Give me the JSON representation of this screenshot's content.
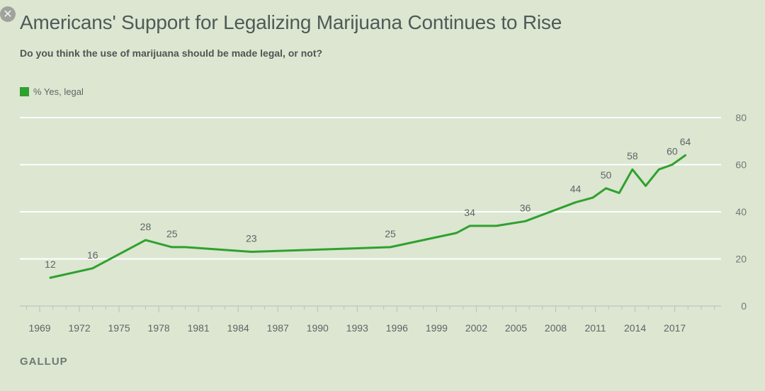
{
  "ui": {
    "close_icon": "close-icon"
  },
  "header": {
    "title": "Americans' Support for Legalizing Marijuana Continues to Rise",
    "subtitle": "Do you think the use of marijuana should be made legal, or not?"
  },
  "footer": {
    "source": "GALLUP"
  },
  "colors": {
    "line": "#2ea12e",
    "grid": "#ffffff",
    "background": "#dce6d1"
  },
  "chart_data": {
    "type": "line",
    "title": "Americans' Support for Legalizing Marijuana Continues to Rise",
    "subtitle": "Do you think the use of marijuana should be made legal, or not?",
    "xlabel": "",
    "ylabel": "",
    "xlim": [
      1967.5,
      2020.5
    ],
    "ylim": [
      0,
      80
    ],
    "y_axis_side": "right",
    "yticks": [
      0,
      20,
      40,
      60,
      80
    ],
    "xticks": [
      1969,
      1972,
      1975,
      1978,
      1981,
      1984,
      1987,
      1990,
      1993,
      1996,
      1999,
      2002,
      2005,
      2008,
      2011,
      2014,
      2017
    ],
    "grid": true,
    "legend": "top-left",
    "series": [
      {
        "name": "% Yes, legal",
        "color": "#2ea12e",
        "points": [
          {
            "x": 1969.8,
            "y": 12,
            "label": "12"
          },
          {
            "x": 1973.0,
            "y": 16,
            "label": "16"
          },
          {
            "x": 1977.0,
            "y": 28,
            "label": "28"
          },
          {
            "x": 1979.0,
            "y": 25,
            "label": "25"
          },
          {
            "x": 1980.0,
            "y": 25
          },
          {
            "x": 1985.0,
            "y": 23,
            "label": "23"
          },
          {
            "x": 1995.5,
            "y": 25,
            "label": "25"
          },
          {
            "x": 2000.5,
            "y": 31
          },
          {
            "x": 2001.5,
            "y": 34,
            "label": "34"
          },
          {
            "x": 2003.5,
            "y": 34
          },
          {
            "x": 2005.7,
            "y": 36,
            "label": "36"
          },
          {
            "x": 2009.5,
            "y": 44,
            "label": "44"
          },
          {
            "x": 2010.8,
            "y": 46
          },
          {
            "x": 2011.8,
            "y": 50,
            "label": "50"
          },
          {
            "x": 2012.8,
            "y": 48
          },
          {
            "x": 2013.8,
            "y": 58,
            "label": "58"
          },
          {
            "x": 2014.8,
            "y": 51
          },
          {
            "x": 2015.8,
            "y": 58
          },
          {
            "x": 2016.8,
            "y": 60,
            "label": "60"
          },
          {
            "x": 2017.8,
            "y": 64,
            "label": "64"
          }
        ]
      }
    ]
  }
}
